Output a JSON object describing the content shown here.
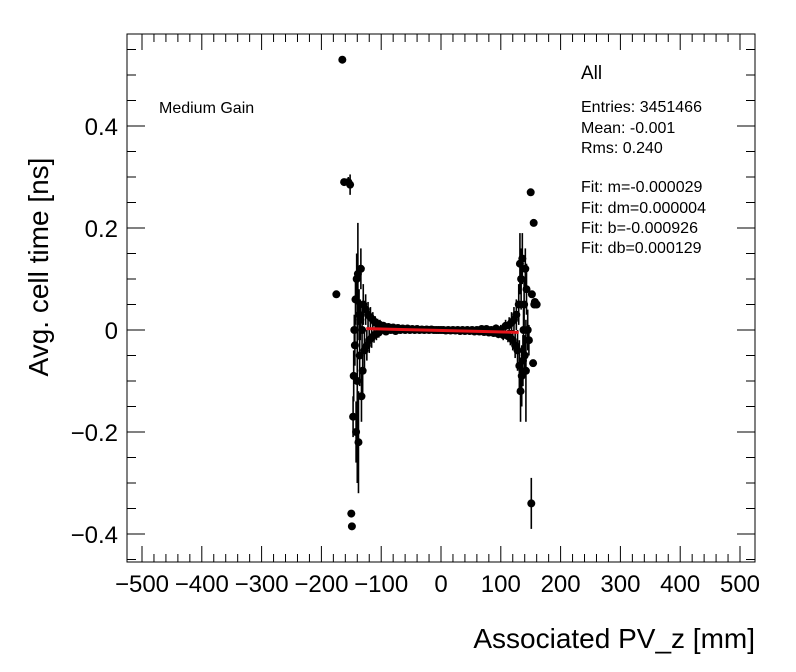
{
  "chart_data": {
    "type": "scatter",
    "title": "",
    "xlabel": "Associated PV_z [mm]",
    "ylabel": "Avg. cell time [ns]",
    "xlim": [
      -500,
      500
    ],
    "ylim": [
      -0.45,
      0.58
    ],
    "x_ticks": [
      -500,
      -400,
      -300,
      -200,
      -100,
      0,
      100,
      200,
      300,
      400,
      500
    ],
    "x_tick_labels": [
      "−500",
      "−400",
      "−300",
      "−200",
      "−100",
      "0",
      "100",
      "200",
      "300",
      "400",
      "500"
    ],
    "y_ticks": [
      -0.4,
      -0.2,
      0,
      0.2,
      0.4
    ],
    "y_tick_labels": [
      "−0.4",
      "−0.2",
      "0",
      "0.2",
      "0.4"
    ],
    "annotation": "Medium Gain",
    "stats": {
      "title": "All",
      "entries": "Entries: 3451466",
      "mean": "Mean: -0.001",
      "rms": "Rms: 0.240",
      "fit_m": "Fit: m=-0.000029",
      "fit_dm": "Fit: dm=0.000004",
      "fit_b": "Fit: b=-0.000926",
      "fit_db": "Fit: db=0.000129"
    },
    "fit_line": {
      "slope": -2.9e-05,
      "intercept": -0.000926,
      "x_range": [
        -125,
        130
      ],
      "color": "#e8141a"
    },
    "points": [
      [
        -175,
        0.07,
        0
      ],
      [
        -165,
        0.53,
        0
      ],
      [
        -162,
        0.29,
        0
      ],
      [
        -155,
        0.29,
        0.01
      ],
      [
        -152,
        0.285,
        0.02
      ],
      [
        -150,
        -0.36,
        0
      ],
      [
        -149,
        -0.385,
        0
      ],
      [
        -147,
        -0.17,
        0.04
      ],
      [
        -146,
        -0.09,
        0.05
      ],
      [
        -145,
        0.0,
        0.03
      ],
      [
        -144,
        -0.03,
        0.04
      ],
      [
        -143,
        0.06,
        0.05
      ],
      [
        -142,
        -0.2,
        0.06
      ],
      [
        -141,
        0.1,
        0.05
      ],
      [
        -140,
        -0.1,
        0.2
      ],
      [
        -139,
        0.11,
        0.1
      ],
      [
        -138,
        -0.22,
        0.1
      ],
      [
        -137,
        0.03,
        0.05
      ],
      [
        -136,
        -0.05,
        0.06
      ],
      [
        -135,
        0.02,
        0.04
      ],
      [
        -134,
        0.12,
        0.04
      ],
      [
        -133,
        -0.13,
        0.05
      ],
      [
        -132,
        0.0,
        0.05
      ],
      [
        -131,
        -0.08,
        0.05
      ],
      [
        -130,
        0.05,
        0.04
      ],
      [
        -128,
        -0.04,
        0.04
      ],
      [
        -126,
        0.04,
        0.03
      ],
      [
        -124,
        -0.03,
        0.03
      ],
      [
        -122,
        0.03,
        0.025
      ],
      [
        -120,
        -0.02,
        0.025
      ],
      [
        -118,
        0.025,
        0.02
      ],
      [
        -116,
        -0.015,
        0.02
      ],
      [
        -114,
        0.02,
        0.015
      ],
      [
        -112,
        -0.01,
        0.015
      ],
      [
        -110,
        0.015,
        0.012
      ],
      [
        -108,
        -0.008,
        0.012
      ],
      [
        -106,
        0.012,
        0.01
      ],
      [
        -104,
        -0.005,
        0.01
      ],
      [
        -102,
        0.01,
        0.01
      ],
      [
        -100,
        0.0,
        0.008
      ],
      [
        -96,
        0.008,
        0.008
      ],
      [
        -92,
        -0.003,
        0.007
      ],
      [
        -88,
        0.006,
        0.007
      ],
      [
        -84,
        0.0,
        0.006
      ],
      [
        -80,
        0.005,
        0.006
      ],
      [
        -76,
        -0.002,
        0.005
      ],
      [
        -72,
        0.004,
        0.005
      ],
      [
        -68,
        0.0,
        0.005
      ],
      [
        -64,
        0.003,
        0.004
      ],
      [
        -60,
        0.0,
        0.004
      ],
      [
        -56,
        0.003,
        0.004
      ],
      [
        -52,
        0.0,
        0.004
      ],
      [
        -48,
        0.002,
        0.004
      ],
      [
        -44,
        0.0,
        0.004
      ],
      [
        -40,
        0.002,
        0.004
      ],
      [
        -36,
        0.0,
        0.004
      ],
      [
        -32,
        0.001,
        0.004
      ],
      [
        -28,
        0.0,
        0.004
      ],
      [
        -24,
        0.001,
        0.004
      ],
      [
        -20,
        0.0,
        0.004
      ],
      [
        -16,
        0.001,
        0.004
      ],
      [
        -12,
        0.0,
        0.004
      ],
      [
        -8,
        0.0,
        0.004
      ],
      [
        -4,
        0.0,
        0.004
      ],
      [
        0,
        0.0,
        0.004
      ],
      [
        4,
        0.0,
        0.004
      ],
      [
        8,
        -0.001,
        0.004
      ],
      [
        12,
        0.0,
        0.004
      ],
      [
        16,
        -0.001,
        0.004
      ],
      [
        20,
        0.0,
        0.004
      ],
      [
        24,
        -0.001,
        0.004
      ],
      [
        28,
        0.0,
        0.004
      ],
      [
        32,
        -0.002,
        0.004
      ],
      [
        36,
        0.0,
        0.004
      ],
      [
        40,
        -0.002,
        0.004
      ],
      [
        44,
        0.0,
        0.004
      ],
      [
        48,
        -0.002,
        0.004
      ],
      [
        52,
        0.0,
        0.004
      ],
      [
        56,
        -0.003,
        0.004
      ],
      [
        60,
        0.0,
        0.005
      ],
      [
        64,
        -0.003,
        0.005
      ],
      [
        68,
        0.002,
        0.005
      ],
      [
        72,
        -0.004,
        0.005
      ],
      [
        76,
        0.002,
        0.006
      ],
      [
        80,
        -0.005,
        0.006
      ],
      [
        84,
        0.0,
        0.007
      ],
      [
        88,
        -0.006,
        0.007
      ],
      [
        92,
        0.003,
        0.008
      ],
      [
        96,
        -0.008,
        0.008
      ],
      [
        100,
        0.0,
        0.01
      ],
      [
        104,
        -0.01,
        0.01
      ],
      [
        108,
        0.008,
        0.012
      ],
      [
        112,
        -0.012,
        0.012
      ],
      [
        114,
        0.01,
        0.015
      ],
      [
        116,
        -0.015,
        0.015
      ],
      [
        118,
        0.015,
        0.02
      ],
      [
        120,
        -0.02,
        0.02
      ],
      [
        122,
        0.02,
        0.025
      ],
      [
        124,
        -0.03,
        0.025
      ],
      [
        126,
        0.03,
        0.03
      ],
      [
        128,
        -0.04,
        0.04
      ],
      [
        130,
        0.05,
        0.04
      ],
      [
        131,
        -0.07,
        0.05
      ],
      [
        132,
        0.13,
        0.06
      ],
      [
        133,
        -0.12,
        0.06
      ],
      [
        134,
        0.1,
        0.06
      ],
      [
        135,
        -0.09,
        0.06
      ],
      [
        136,
        0.14,
        0.05
      ],
      [
        137,
        -0.06,
        0.05
      ],
      [
        138,
        0.0,
        0.05
      ],
      [
        139,
        0.05,
        0.05
      ],
      [
        140,
        -0.05,
        0.04
      ],
      [
        141,
        0.12,
        0.04
      ],
      [
        142,
        -0.08,
        0.1
      ],
      [
        143,
        0.08,
        0.05
      ],
      [
        145,
        0.0,
        0.04
      ],
      [
        147,
        -0.02,
        0.03
      ],
      [
        150,
        0.27,
        0
      ],
      [
        151,
        -0.34,
        0.05
      ],
      [
        152,
        0.07,
        0
      ],
      [
        154,
        -0.065,
        0
      ],
      [
        155,
        0.21,
        0
      ],
      [
        156,
        0.05,
        0
      ],
      [
        157,
        0.055,
        0
      ],
      [
        160,
        0.05,
        0
      ]
    ]
  }
}
